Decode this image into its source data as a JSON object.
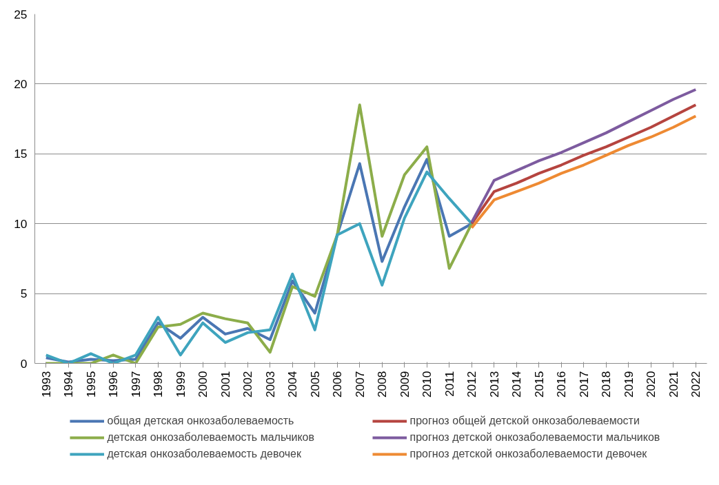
{
  "chart_data": {
    "type": "line",
    "categories": [
      "1993",
      "1994",
      "1995",
      "1996",
      "1997",
      "1998",
      "1999",
      "2000",
      "2001",
      "2002",
      "2003",
      "2004",
      "2005",
      "2006",
      "2007",
      "2008",
      "2009",
      "2010",
      "2011",
      "2012",
      "2013",
      "2014",
      "2015",
      "2016",
      "2017",
      "2018",
      "2019",
      "2020",
      "2021",
      "2022"
    ],
    "series": [
      {
        "name": "общая детская онкозаболеваемость",
        "color": "#4a76b3",
        "values": [
          0.4,
          0.1,
          0.3,
          0.2,
          0.3,
          2.9,
          1.8,
          3.3,
          2.1,
          2.5,
          1.7,
          5.9,
          3.6,
          9.2,
          14.3,
          7.3,
          11.2,
          14.6,
          9.1,
          10.0,
          null,
          null,
          null,
          null,
          null,
          null,
          null,
          null,
          null,
          null
        ]
      },
      {
        "name": "детская онкозаболеваемость мальчиков",
        "color": "#8cad4a",
        "values": [
          0,
          0,
          0,
          0.6,
          0,
          2.6,
          2.8,
          3.6,
          3.2,
          2.9,
          0.8,
          5.5,
          4.8,
          9.2,
          18.5,
          9.1,
          13.5,
          15.5,
          6.8,
          10.0,
          null,
          null,
          null,
          null,
          null,
          null,
          null,
          null,
          null,
          null
        ]
      },
      {
        "name": "детская онкозаболеваемость девочек",
        "color": "#3ea4be",
        "values": [
          0.6,
          0,
          0.7,
          0,
          0.6,
          3.3,
          0.6,
          2.9,
          1.5,
          2.2,
          2.4,
          6.4,
          2.4,
          9.2,
          10.0,
          5.6,
          10.4,
          13.7,
          11.8,
          10.0,
          null,
          null,
          null,
          null,
          null,
          null,
          null,
          null,
          null,
          null
        ]
      },
      {
        "name": "прогноз общей детской онкозаболеваемости",
        "color": "#b5443f",
        "values": [
          null,
          null,
          null,
          null,
          null,
          null,
          null,
          null,
          null,
          null,
          null,
          null,
          null,
          null,
          null,
          null,
          null,
          null,
          null,
          10.0,
          12.3,
          12.9,
          13.6,
          14.2,
          14.9,
          15.5,
          16.2,
          16.9,
          17.7,
          18.5
        ]
      },
      {
        "name": "прогноз детской онкозаболеваемости мальчиков",
        "color": "#7d5b9f",
        "values": [
          null,
          null,
          null,
          null,
          null,
          null,
          null,
          null,
          null,
          null,
          null,
          null,
          null,
          null,
          null,
          null,
          null,
          null,
          null,
          10.1,
          13.1,
          13.8,
          14.5,
          15.1,
          15.8,
          16.5,
          17.3,
          18.1,
          18.9,
          19.6
        ]
      },
      {
        "name": "прогноз детской онкозаболеваемости девочек",
        "color": "#ee8a33",
        "values": [
          null,
          null,
          null,
          null,
          null,
          null,
          null,
          null,
          null,
          null,
          null,
          null,
          null,
          null,
          null,
          null,
          null,
          null,
          null,
          9.7,
          11.7,
          12.3,
          12.9,
          13.6,
          14.2,
          14.9,
          15.6,
          16.2,
          16.9,
          17.7
        ]
      }
    ],
    "ylim": [
      0,
      25
    ],
    "yticks": [
      0,
      5,
      10,
      15,
      20,
      25
    ],
    "grid": "y",
    "legend": "bottom",
    "marker": "none",
    "line_style": "solid"
  }
}
